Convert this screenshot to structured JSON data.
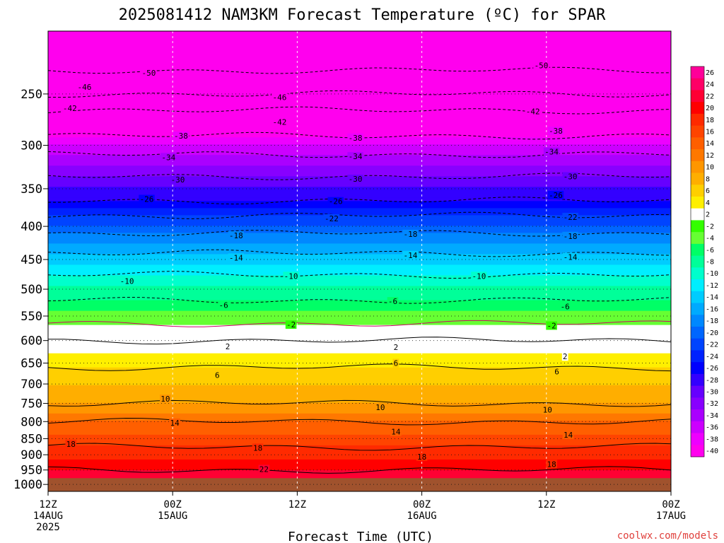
{
  "chart_data": {
    "type": "heatmap",
    "title": "2025081412 NAM3KM Forecast Temperature (ºC) for SPAR",
    "xlabel": "Forecast Time (UTC)",
    "ylabel": "",
    "credit": "coolwx.com/models",
    "y_scale": "log-pressure",
    "ylim": [
      1025,
      200
    ],
    "y_ticks": [
      "250",
      "300",
      "350",
      "400",
      "450",
      "500",
      "550",
      "600",
      "650",
      "700",
      "750",
      "800",
      "850",
      "900",
      "950",
      "1000"
    ],
    "x_ticks": [
      {
        "hour": 0,
        "l1": "12Z",
        "l2": "14AUG",
        "l3": "2025"
      },
      {
        "hour": 12,
        "l1": "00Z",
        "l2": "15AUG",
        "l3": ""
      },
      {
        "hour": 24,
        "l1": "12Z",
        "l2": "",
        "l3": ""
      },
      {
        "hour": 36,
        "l1": "00Z",
        "l2": "16AUG",
        "l3": ""
      },
      {
        "hour": 48,
        "l1": "12Z",
        "l2": "",
        "l3": ""
      },
      {
        "hour": 60,
        "l1": "00Z",
        "l2": "17AUG",
        "l3": ""
      }
    ],
    "xlim_hours": [
      0,
      60
    ],
    "surface_pressure": 978,
    "temperature_profile": [
      {
        "p": 200,
        "t": -56
      },
      {
        "p": 230,
        "t": -50
      },
      {
        "p": 250,
        "t": -46
      },
      {
        "p": 265,
        "t": -42
      },
      {
        "p": 290,
        "t": -38
      },
      {
        "p": 310,
        "t": -34
      },
      {
        "p": 335,
        "t": -30
      },
      {
        "p": 365,
        "t": -26
      },
      {
        "p": 385,
        "t": -22
      },
      {
        "p": 410,
        "t": -18
      },
      {
        "p": 440,
        "t": -14
      },
      {
        "p": 475,
        "t": -10
      },
      {
        "p": 520,
        "t": -6
      },
      {
        "p": 565,
        "t": -2
      },
      {
        "p": 600,
        "t": 2
      },
      {
        "p": 660,
        "t": 6
      },
      {
        "p": 750,
        "t": 10
      },
      {
        "p": 800,
        "t": 14
      },
      {
        "p": 875,
        "t": 18
      },
      {
        "p": 950,
        "t": 22
      },
      {
        "p": 1000,
        "t": 24
      }
    ],
    "contour_labels": [
      {
        "h": 9.7,
        "p": 232,
        "t": "-50"
      },
      {
        "h": 47.5,
        "p": 226,
        "t": "-50"
      },
      {
        "h": 3.5,
        "p": 244,
        "t": "-46"
      },
      {
        "h": 22.3,
        "p": 253,
        "t": "-46"
      },
      {
        "h": 2.1,
        "p": 263,
        "t": "-42"
      },
      {
        "h": 22.3,
        "p": 276,
        "t": "-42"
      },
      {
        "h": 46.7,
        "p": 266,
        "t": "-42"
      },
      {
        "h": 12.8,
        "p": 290,
        "t": "-38"
      },
      {
        "h": 29.6,
        "p": 292,
        "t": "-38"
      },
      {
        "h": 48.9,
        "p": 285,
        "t": "-38"
      },
      {
        "h": 11.6,
        "p": 313,
        "t": "-34"
      },
      {
        "h": 29.6,
        "p": 312,
        "t": "-34"
      },
      {
        "h": 48.5,
        "p": 307,
        "t": "-34"
      },
      {
        "h": 12.5,
        "p": 339,
        "t": "-30"
      },
      {
        "h": 29.6,
        "p": 338,
        "t": "-30"
      },
      {
        "h": 50.3,
        "p": 335,
        "t": "-30"
      },
      {
        "h": 9.5,
        "p": 363,
        "t": "-26"
      },
      {
        "h": 27.7,
        "p": 366,
        "t": "-26"
      },
      {
        "h": 48.9,
        "p": 358,
        "t": "-26"
      },
      {
        "h": 27.3,
        "p": 389,
        "t": "-22"
      },
      {
        "h": 50.3,
        "p": 387,
        "t": "-22"
      },
      {
        "h": 18.1,
        "p": 413,
        "t": "-18"
      },
      {
        "h": 34.9,
        "p": 411,
        "t": "-18"
      },
      {
        "h": 50.3,
        "p": 414,
        "t": "-18"
      },
      {
        "h": 18.1,
        "p": 447,
        "t": "-14"
      },
      {
        "h": 34.9,
        "p": 443,
        "t": "-14"
      },
      {
        "h": 50.3,
        "p": 446,
        "t": "-14"
      },
      {
        "h": 7.6,
        "p": 486,
        "t": "-10"
      },
      {
        "h": 23.4,
        "p": 477,
        "t": "-10"
      },
      {
        "h": 41.5,
        "p": 477,
        "t": "-10"
      },
      {
        "h": 16.9,
        "p": 529,
        "t": "-6"
      },
      {
        "h": 33.2,
        "p": 522,
        "t": "-6"
      },
      {
        "h": 49.8,
        "p": 532,
        "t": "-6"
      },
      {
        "h": 23.4,
        "p": 567,
        "t": "-2"
      },
      {
        "h": 48.5,
        "p": 569,
        "t": "-2"
      },
      {
        "h": 17.3,
        "p": 613,
        "t": "2"
      },
      {
        "h": 33.5,
        "p": 614,
        "t": "2"
      },
      {
        "h": 49.8,
        "p": 635,
        "t": "2"
      },
      {
        "h": 16.3,
        "p": 678,
        "t": "6"
      },
      {
        "h": 33.5,
        "p": 650,
        "t": "6"
      },
      {
        "h": 49.0,
        "p": 670,
        "t": "6"
      },
      {
        "h": 11.3,
        "p": 738,
        "t": "10"
      },
      {
        "h": 32.0,
        "p": 760,
        "t": "10"
      },
      {
        "h": 48.1,
        "p": 767,
        "t": "10"
      },
      {
        "h": 12.2,
        "p": 803,
        "t": "14"
      },
      {
        "h": 33.5,
        "p": 829,
        "t": "14"
      },
      {
        "h": 50.1,
        "p": 838,
        "t": "14"
      },
      {
        "h": 2.2,
        "p": 866,
        "t": "18"
      },
      {
        "h": 20.2,
        "p": 878,
        "t": "18"
      },
      {
        "h": 36.0,
        "p": 906,
        "t": "18"
      },
      {
        "h": 48.5,
        "p": 930,
        "t": "18"
      },
      {
        "h": 20.8,
        "p": 947,
        "t": "22"
      }
    ],
    "colorbar_ticks": [
      "26",
      "24",
      "22",
      "20",
      "18",
      "16",
      "14",
      "12",
      "10",
      "8",
      "6",
      "4",
      "2",
      "-2",
      "-4",
      "-6",
      "-8",
      "-10",
      "-12",
      "-14",
      "-16",
      "-18",
      "-20",
      "-22",
      "-24",
      "-26",
      "-28",
      "-30",
      "-32",
      "-34",
      "-36",
      "-38",
      "-40"
    ],
    "colorbar_colors": [
      "#ff0099",
      "#ff0066",
      "#ff0033",
      "#ff0000",
      "#ff2a00",
      "#ff4400",
      "#ff5f00",
      "#ff7800",
      "#ff9600",
      "#ffae00",
      "#ffcf00",
      "#ffef00",
      "#ffffff",
      "#33ff00",
      "#66ff33",
      "#00ff66",
      "#00ff99",
      "#00ffcc",
      "#00eeff",
      "#00ccff",
      "#00aaff",
      "#0088ff",
      "#0066ff",
      "#0044ff",
      "#0022ff",
      "#0000ff",
      "#3300ff",
      "#6600ff",
      "#8800ff",
      "#aa00ff",
      "#cc00ff",
      "#ee00ff",
      "#ff00ee"
    ],
    "surface_color": "#a0522d",
    "stable_layer_color": "#e8e8e8"
  }
}
